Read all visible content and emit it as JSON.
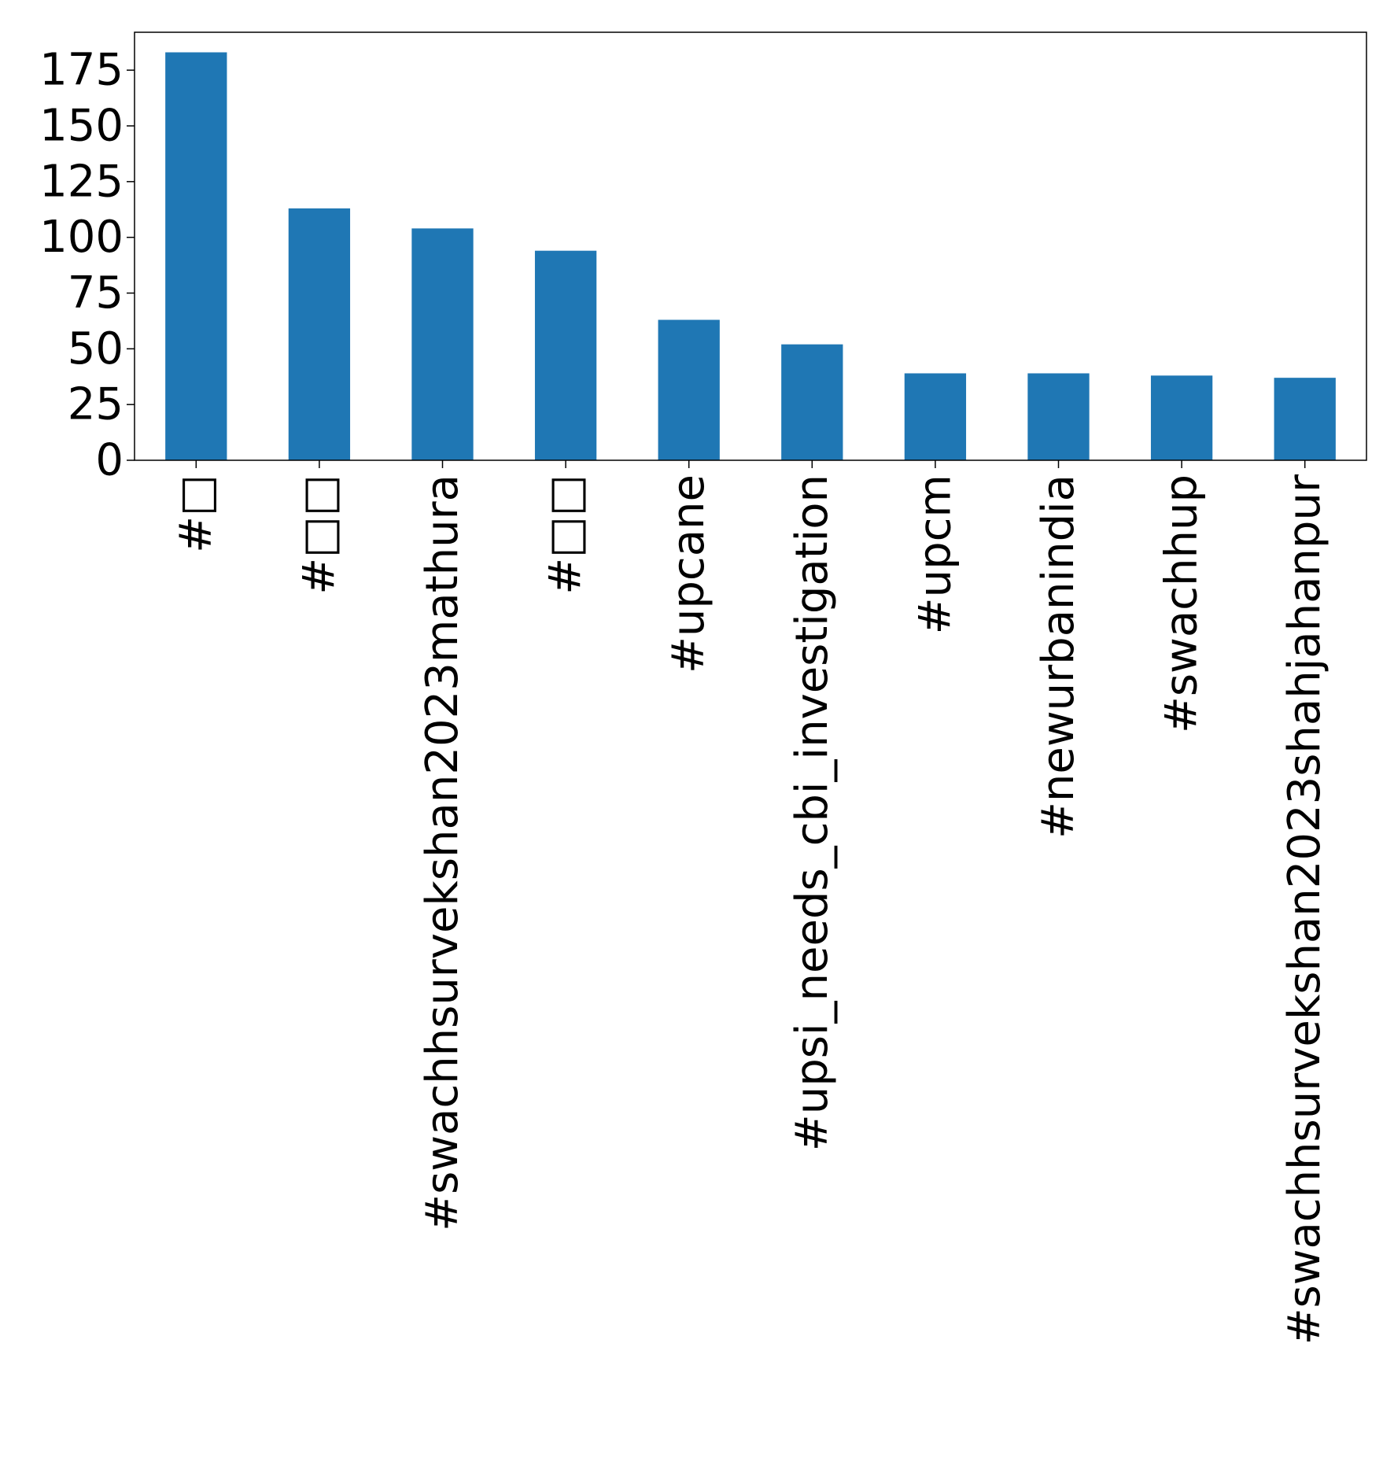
{
  "chart_data": {
    "type": "bar",
    "title": "",
    "xlabel": "",
    "ylabel": "",
    "categories": [
      "#□",
      "#□□",
      "#swachhsurvekshan2023mathura",
      "#□□",
      "#upcane",
      "#upsi_needs_cbi_investigation",
      "#upcm",
      "#newurbanindia",
      "#swachhup",
      "#swachhsurvekshan2023shahjahanpur"
    ],
    "values": [
      183,
      113,
      104,
      94,
      63,
      52,
      39,
      39,
      38,
      37
    ],
    "ylim": [
      0,
      192
    ],
    "yticks": [
      0,
      25,
      50,
      75,
      100,
      125,
      150,
      175
    ],
    "ytick_labels": [
      "0",
      "25",
      "50",
      "75",
      "100",
      "125",
      "150",
      "175"
    ],
    "bar_color": "#1f77b4",
    "grid": false,
    "legend": "none"
  }
}
